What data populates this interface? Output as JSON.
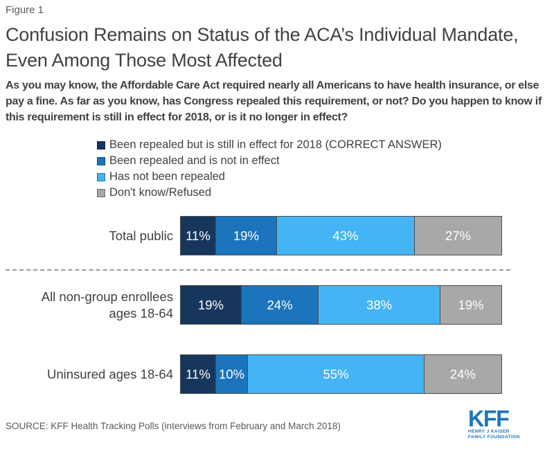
{
  "figure_label": "Figure 1",
  "title": "Confusion Remains on Status of the ACA’s Individual Mandate, Even Among Those Most Affected",
  "subtitle": "As you may know, the Affordable Care Act required nearly all Americans to have health insurance, or else pay a fine. As far as you know, has Congress repealed this requirement, or not? Do you happen to know if this requirement is still in effect for 2018, or is it no longer in effect?",
  "colors": {
    "navy": "#17365c",
    "medium_blue": "#1b74bc",
    "light_blue": "#45b4f4",
    "gray": "#a8a8a8",
    "text_dark": "#414042",
    "text_muted": "#58595b",
    "logo_blue": "#1b76bd",
    "segment_border": "#4d4d4d"
  },
  "chart_data": {
    "type": "bar",
    "orientation": "horizontal",
    "stacked": true,
    "unit": "%",
    "xlim": [
      0,
      100
    ],
    "grid": false,
    "legend_position": "top-left",
    "value_labels": "inside-white",
    "categories": [
      "Total public",
      "All non-group enrollees ages 18-64",
      "Uninsured ages 18-64"
    ],
    "series": [
      {
        "name": "Been repealed but is still in effect for 2018 (CORRECT ANSWER)",
        "color": "#17365c",
        "values": [
          11,
          19,
          11
        ]
      },
      {
        "name": "Been repealed and is not in effect",
        "color": "#1b74bc",
        "values": [
          19,
          24,
          10
        ]
      },
      {
        "name": "Has not been repealed",
        "color": "#45b4f4",
        "values": [
          43,
          38,
          55
        ]
      },
      {
        "name": "Don't know/Refused",
        "color": "#a8a8a8",
        "values": [
          27,
          19,
          24
        ]
      }
    ],
    "divider_after_category": "Total public"
  },
  "source": "SOURCE: KFF Health Tracking Polls (interviews from February and March 2018)",
  "logo": {
    "kff": "KFF",
    "line1": "HENRY J KAISER",
    "line2": "FAMILY FOUNDATION"
  }
}
